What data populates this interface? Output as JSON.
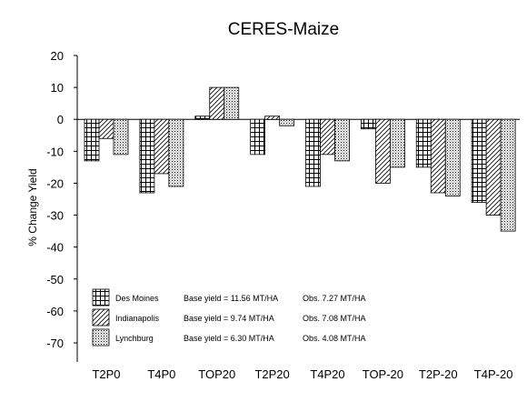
{
  "chart_data": {
    "type": "bar",
    "title": "CERES-Maize",
    "ylabel": "% Change Yield",
    "xlabel": "",
    "ylim": [
      -75,
      20
    ],
    "yticks": [
      20,
      10,
      0,
      -10,
      -20,
      -30,
      -40,
      -50,
      -60,
      -70
    ],
    "categories": [
      "T2P0",
      "T4P0",
      "TOP20",
      "T2P20",
      "T4P20",
      "TOP-20",
      "T2P-20",
      "T4P-20"
    ],
    "series": [
      {
        "name": "Des Moines",
        "values": [
          -13,
          -23,
          1,
          -11,
          -21,
          -3,
          -15,
          -26
        ]
      },
      {
        "name": "Indianapolis",
        "values": [
          -6,
          -17,
          10,
          1,
          -11,
          -20,
          -23,
          -30
        ]
      },
      {
        "name": "Lynchburg",
        "values": [
          -11,
          -21,
          10,
          -2,
          -13,
          -15,
          -24,
          -35
        ]
      }
    ],
    "legend": {
      "placement": "bottom-left",
      "entries": [
        {
          "name": "Des Moines",
          "base": "Base yield = 11.56 MT/HA",
          "obs": "Obs. 7.27 MT/HA"
        },
        {
          "name": "Indianapolis",
          "base": "Base yield =  9.74 MT/HA",
          "obs": "Obs. 7.08 MT/HA"
        },
        {
          "name": "Lynchburg",
          "base": "Base yield =  6.30 MT/HA",
          "obs": "Obs. 4.08 MT/HA"
        }
      ]
    },
    "grid": false
  }
}
